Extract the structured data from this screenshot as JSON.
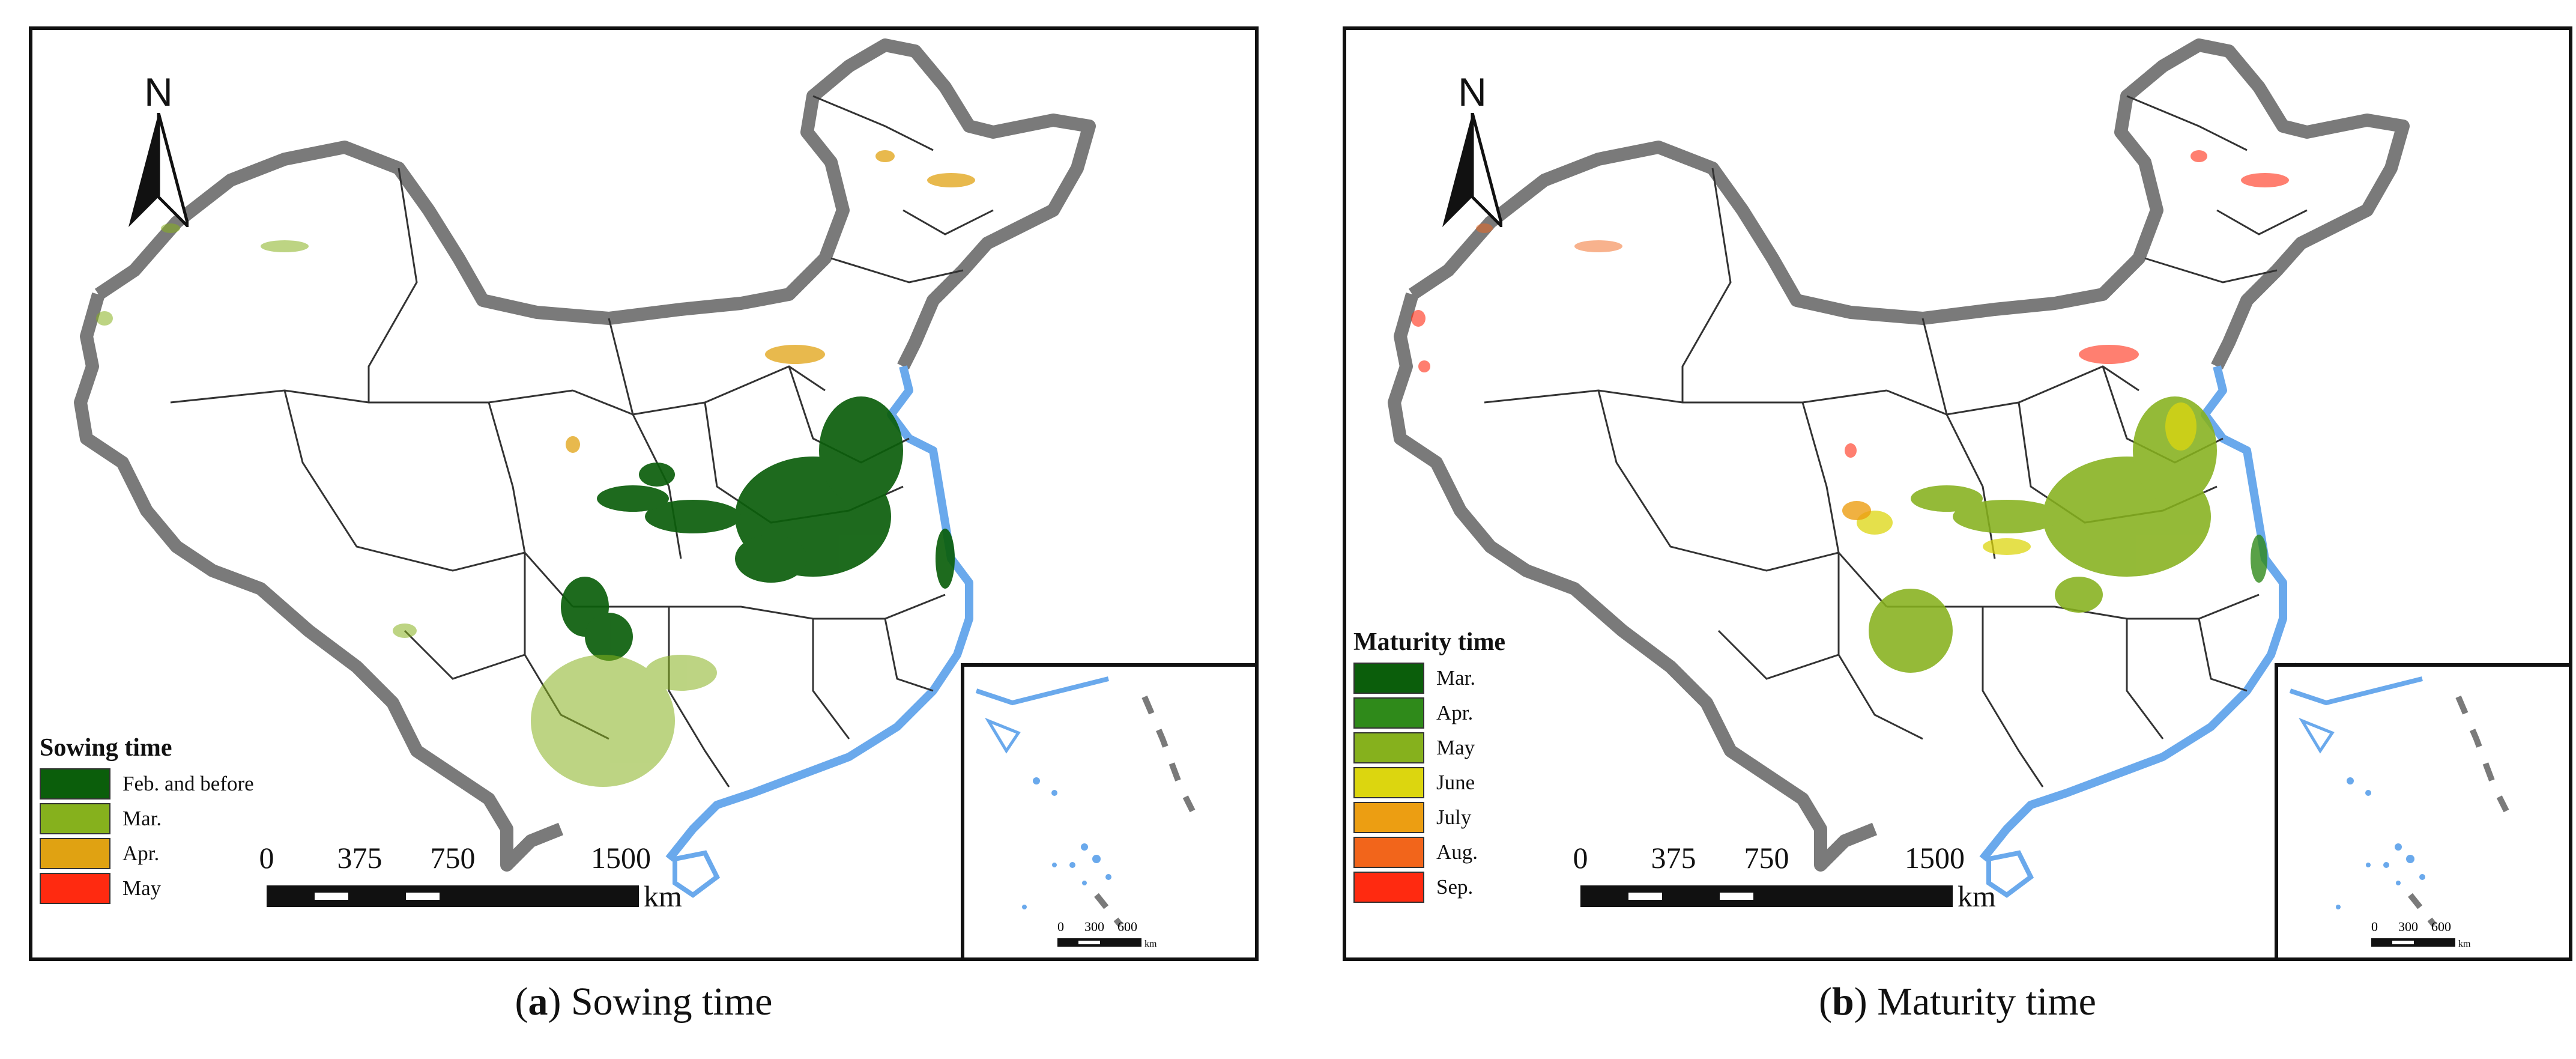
{
  "north_label": "N",
  "scale": {
    "ticks": [
      "0",
      "375",
      "750",
      "1500"
    ],
    "unit": "km"
  },
  "inset_scale": {
    "ticks": [
      "0",
      "300",
      "600"
    ],
    "unit": "km"
  },
  "colors": {
    "boundary": "#7a7a7a",
    "province_line": "#333333",
    "water": "#6aa9ec",
    "frame": "#111111"
  },
  "panels": [
    {
      "legend_title": "Sowing time",
      "legend": [
        {
          "label": "Feb. and before",
          "color": "#0b5e0b"
        },
        {
          "label": "Mar.",
          "color": "#86b11d"
        },
        {
          "label": "Apr.",
          "color": "#e0a212"
        },
        {
          "label": "May",
          "color": "#ff2a10"
        }
      ],
      "caption_letter": "a",
      "caption_text": "Sowing time"
    },
    {
      "legend_title": "Maturity time",
      "legend": [
        {
          "label": "Mar.",
          "color": "#0b5e0b"
        },
        {
          "label": "Apr.",
          "color": "#2f8a1a"
        },
        {
          "label": "May",
          "color": "#86b11d"
        },
        {
          "label": "June",
          "color": "#dcd60f"
        },
        {
          "label": "July",
          "color": "#ec9e12"
        },
        {
          "label": "Aug.",
          "color": "#f2651b"
        },
        {
          "label": "Sep.",
          "color": "#ff2a10"
        }
      ],
      "caption_letter": "b",
      "caption_text": "Maturity time"
    }
  ]
}
